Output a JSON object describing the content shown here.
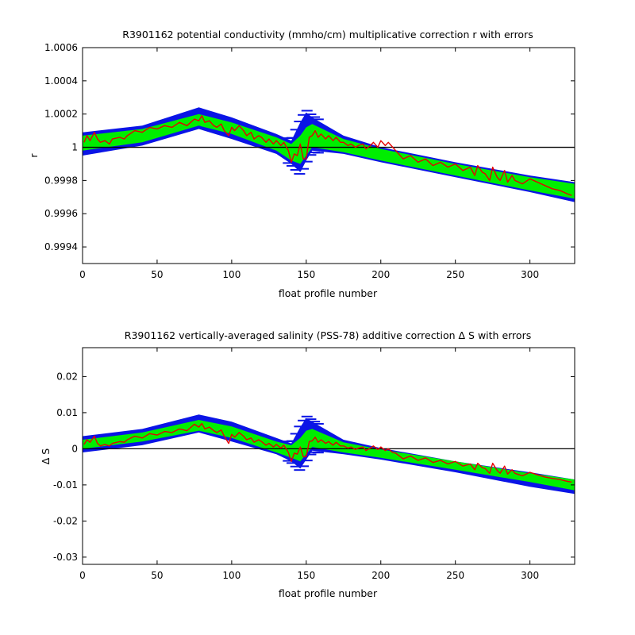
{
  "colors": {
    "error_band": "#0a14e6",
    "fit_band": "#00ee00",
    "correction_line": "#e60000",
    "reference_line": "#000000",
    "axes": "#000000"
  },
  "chart_data": [
    {
      "type": "line",
      "title": "R3901162 potential conductivity (mmho/cm) multiplicative correction r with errors",
      "xlabel": "float profile number",
      "ylabel": "r",
      "xlim": [
        0,
        330
      ],
      "ylim": [
        0.9993,
        1.0006
      ],
      "xticks": [
        0,
        50,
        100,
        150,
        200,
        250,
        300
      ],
      "xtick_labels": [
        "0",
        "50",
        "100",
        "150",
        "200",
        "250",
        "300"
      ],
      "yticks": [
        0.9994,
        0.9996,
        0.9998,
        1.0,
        1.0002,
        1.0004,
        1.0006
      ],
      "ytick_labels": [
        "0.9994",
        "0.9996",
        "0.9998",
        "1",
        "1.0002",
        "1.0004",
        "1.0006"
      ],
      "grid": false,
      "reference_line": 1.0,
      "error_band": {
        "x": [
          0,
          40,
          78,
          100,
          130,
          140,
          146,
          150,
          154,
          175,
          200,
          250,
          300,
          330
        ],
        "upper": [
          1.00009,
          1.00013,
          1.00024,
          1.00018,
          1.00008,
          1.00004,
          1.00015,
          1.00021,
          1.00018,
          1.00007,
          1.0,
          0.99991,
          0.99983,
          0.99979
        ],
        "lower": [
          0.99995,
          1.00001,
          1.00011,
          1.00005,
          0.99996,
          0.9999,
          0.99985,
          0.99992,
          0.99998,
          0.99996,
          0.99991,
          0.99982,
          0.99973,
          0.99967
        ]
      },
      "fit_band": {
        "x": [
          0,
          40,
          78,
          100,
          130,
          140,
          146,
          150,
          154,
          175,
          200,
          250,
          300,
          330
        ],
        "upper": [
          1.00007,
          1.00011,
          1.0002,
          1.00015,
          1.00006,
          1.00002,
          1.00007,
          1.00012,
          1.00014,
          1.00005,
          0.99999,
          0.9999,
          0.99982,
          0.99978
        ],
        "lower": [
          0.99998,
          1.00003,
          1.00013,
          1.00008,
          0.99998,
          0.99992,
          0.9999,
          0.99995,
          1.0,
          0.99997,
          0.99992,
          0.99983,
          0.99974,
          0.99969
        ]
      },
      "series": [
        {
          "x": [
            1,
            3,
            5,
            8,
            10,
            12,
            15,
            18,
            20,
            25,
            28,
            30,
            35,
            40,
            45,
            50,
            55,
            60,
            65,
            70,
            75,
            78,
            80,
            82,
            85,
            88,
            90,
            93,
            95,
            98,
            100,
            102,
            105,
            108,
            110,
            113,
            115,
            118,
            120,
            123,
            125,
            128,
            130,
            133,
            135,
            138,
            140,
            142,
            144,
            146,
            148,
            150,
            152,
            154,
            156,
            158,
            160,
            163,
            165,
            168,
            170,
            173,
            175,
            178,
            180,
            183,
            185,
            188,
            190,
            193,
            195,
            198,
            200,
            203,
            205,
            208,
            210,
            215,
            220,
            225,
            230,
            235,
            240,
            245,
            250,
            255,
            260,
            263,
            265,
            268,
            270,
            273,
            275,
            278,
            280,
            283,
            285,
            288,
            290,
            295,
            300,
            305,
            310,
            315,
            320,
            325,
            328
          ],
          "values": [
            1.00003,
            1.00007,
            1.00004,
            1.00009,
            1.00005,
            1.00003,
            1.00004,
            1.00002,
            1.00005,
            1.00006,
            1.00005,
            1.00007,
            1.0001,
            1.00009,
            1.00012,
            1.00011,
            1.00013,
            1.00012,
            1.00015,
            1.00013,
            1.00017,
            1.00016,
            1.00019,
            1.00015,
            1.00016,
            1.00013,
            1.00012,
            1.00014,
            1.0001,
            1.00007,
            1.00012,
            1.0001,
            1.00013,
            1.0001,
            1.00007,
            1.00009,
            1.00005,
            1.00007,
            1.00006,
            1.00003,
            1.00005,
            1.00002,
            1.00004,
            1.00001,
            1.00003,
            0.99998,
            0.99991,
            0.99996,
            0.99995,
            1.00002,
            0.99993,
            0.99993,
            1.00006,
            1.00007,
            1.0001,
            1.00006,
            1.00008,
            1.00005,
            1.00007,
            1.00004,
            1.00006,
            1.00003,
            1.00003,
            1.00001,
            1.00002,
            1.0,
            1.00001,
            1.00002,
            0.99999,
            1.00001,
            1.00003,
            1.0,
            1.00004,
            1.00001,
            1.00003,
            1.0,
            0.99998,
            0.99993,
            0.99995,
            0.99991,
            0.99993,
            0.99989,
            0.99991,
            0.99988,
            0.9999,
            0.99986,
            0.99988,
            0.99983,
            0.99989,
            0.99985,
            0.99984,
            0.9998,
            0.99988,
            0.99982,
            0.9998,
            0.99986,
            0.99979,
            0.99983,
            0.9998,
            0.99978,
            0.99981,
            0.99979,
            0.99977,
            0.99975,
            0.99974,
            0.99972,
            0.99971
          ]
        }
      ]
    },
    {
      "type": "line",
      "title": "R3901162 vertically-averaged salinity (PSS-78) additive correction Δ S with errors",
      "xlabel": "float profile number",
      "ylabel": "Δ S",
      "xlim": [
        0,
        330
      ],
      "ylim": [
        -0.032,
        0.028
      ],
      "xticks": [
        0,
        50,
        100,
        150,
        200,
        250,
        300
      ],
      "xtick_labels": [
        "0",
        "50",
        "100",
        "150",
        "200",
        "250",
        "300"
      ],
      "yticks": [
        -0.03,
        -0.02,
        -0.01,
        0,
        0.01,
        0.02
      ],
      "ytick_labels": [
        "-0.03",
        "-0.02",
        "-0.01",
        "0",
        "0.01",
        "0.02"
      ],
      "grid": false,
      "reference_line": 0,
      "error_band": {
        "x": [
          0,
          40,
          78,
          100,
          130,
          140,
          146,
          150,
          154,
          175,
          200,
          250,
          300,
          330
        ],
        "upper": [
          0.0035,
          0.0055,
          0.0095,
          0.0075,
          0.003,
          0.0015,
          0.006,
          0.0085,
          0.0075,
          0.0025,
          0.0002,
          -0.0035,
          -0.0065,
          -0.0085
        ],
        "lower": [
          -0.001,
          0.001,
          0.0045,
          0.002,
          -0.0015,
          -0.0035,
          -0.0055,
          -0.003,
          -0.0005,
          -0.0015,
          -0.003,
          -0.0065,
          -0.0105,
          -0.0125
        ]
      },
      "fit_band": {
        "x": [
          0,
          40,
          78,
          100,
          130,
          140,
          146,
          150,
          154,
          175,
          200,
          250,
          300,
          330
        ],
        "upper": [
          0.0025,
          0.0045,
          0.008,
          0.0062,
          0.002,
          0.001,
          0.003,
          0.005,
          0.0055,
          0.0018,
          -0.0002,
          -0.0035,
          -0.0068,
          -0.0085
        ],
        "lower": [
          0.0,
          0.002,
          0.005,
          0.003,
          -0.001,
          -0.0025,
          -0.0035,
          -0.0015,
          0.0005,
          -0.001,
          -0.0025,
          -0.0058,
          -0.0092,
          -0.0115
        ]
      },
      "series": [
        {
          "x": [
            1,
            3,
            5,
            8,
            10,
            12,
            15,
            18,
            20,
            25,
            28,
            30,
            35,
            40,
            45,
            50,
            55,
            60,
            65,
            70,
            75,
            78,
            80,
            82,
            85,
            88,
            90,
            93,
            95,
            98,
            100,
            102,
            105,
            108,
            110,
            113,
            115,
            118,
            120,
            123,
            125,
            128,
            130,
            133,
            135,
            138,
            140,
            142,
            144,
            146,
            148,
            150,
            152,
            154,
            156,
            158,
            160,
            163,
            165,
            168,
            170,
            173,
            175,
            178,
            180,
            183,
            185,
            188,
            190,
            193,
            195,
            198,
            200,
            203,
            205,
            208,
            210,
            215,
            220,
            225,
            230,
            235,
            240,
            245,
            250,
            255,
            260,
            263,
            265,
            268,
            270,
            273,
            275,
            278,
            280,
            283,
            285,
            288,
            290,
            295,
            300,
            305,
            310,
            315,
            320,
            325,
            328
          ],
          "values": [
            0.0012,
            0.0025,
            0.0018,
            0.0035,
            0.0015,
            0.0008,
            0.0012,
            0.0008,
            0.0015,
            0.002,
            0.0018,
            0.0025,
            0.0035,
            0.003,
            0.0042,
            0.0038,
            0.0048,
            0.0045,
            0.0055,
            0.005,
            0.0068,
            0.006,
            0.007,
            0.0055,
            0.006,
            0.005,
            0.0045,
            0.0052,
            0.0035,
            0.0015,
            0.004,
            0.0032,
            0.0045,
            0.0035,
            0.0025,
            0.003,
            0.0018,
            0.0025,
            0.002,
            0.001,
            0.0015,
            0.0005,
            0.0012,
            0.0002,
            0.001,
            -0.001,
            -0.0035,
            -0.0012,
            -0.0015,
            0.0005,
            -0.0022,
            -0.0022,
            0.002,
            0.0022,
            0.0032,
            0.0018,
            0.0025,
            0.0015,
            0.002,
            0.001,
            0.0018,
            0.0008,
            0.0008,
            0.0002,
            0.0005,
            -0.0002,
            0.0002,
            0.0005,
            -0.0005,
            0.0002,
            0.0008,
            -0.0002,
            0.0005,
            -0.0005,
            0.0,
            -0.001,
            -0.0012,
            -0.0028,
            -0.002,
            -0.0032,
            -0.0025,
            -0.0038,
            -0.0032,
            -0.0042,
            -0.0035,
            -0.0048,
            -0.0042,
            -0.0058,
            -0.004,
            -0.0052,
            -0.0055,
            -0.0068,
            -0.004,
            -0.006,
            -0.0068,
            -0.0048,
            -0.007,
            -0.0058,
            -0.0068,
            -0.0075,
            -0.0065,
            -0.0072,
            -0.0078,
            -0.0082,
            -0.0085,
            -0.009,
            -0.0092
          ]
        }
      ]
    }
  ]
}
